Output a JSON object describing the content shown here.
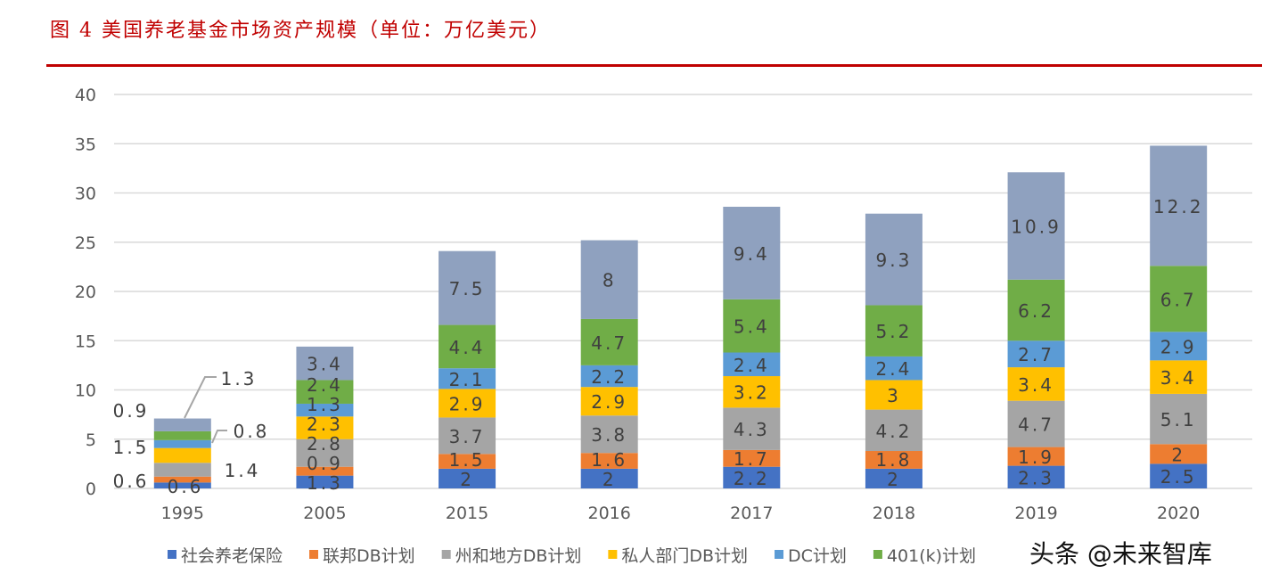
{
  "title": "图 4 美国养老基金市场资产规模（单位：万亿美元）",
  "watermark": "头条 @未来智库",
  "chart_data": {
    "type": "bar",
    "stacked": true,
    "title": "图 4 美国养老基金市场资产规模（单位：万亿美元）",
    "categories": [
      "1995",
      "2005",
      "2015",
      "2016",
      "2017",
      "2018",
      "2019",
      "2020"
    ],
    "ylim": [
      0,
      40
    ],
    "yticks": [
      0,
      5,
      10,
      15,
      20,
      25,
      30,
      35,
      40
    ],
    "grid": true,
    "legend_position": "bottom",
    "series": [
      {
        "name": "社会养老保险",
        "color": "#4472c4",
        "values": [
          0.6,
          1.3,
          2,
          2,
          2.2,
          2,
          2.3,
          2.5
        ]
      },
      {
        "name": "联邦DB计划",
        "color": "#ed7d31",
        "values": [
          0.6,
          0.9,
          1.5,
          1.6,
          1.7,
          1.8,
          1.9,
          2
        ]
      },
      {
        "name": "州和地方DB计划",
        "color": "#a5a5a5",
        "values": [
          1.4,
          2.8,
          3.7,
          3.8,
          4.3,
          4.2,
          4.7,
          5.1
        ]
      },
      {
        "name": "私人部门DB计划",
        "color": "#ffc000",
        "values": [
          1.5,
          2.3,
          2.9,
          2.9,
          3.2,
          3,
          3.4,
          3.4
        ]
      },
      {
        "name": "DC计划",
        "color": "#5b9bd5",
        "values": [
          0.8,
          1.3,
          2.1,
          2.2,
          2.4,
          2.4,
          2.7,
          2.9
        ]
      },
      {
        "name": "401(k)计划",
        "color": "#70ad47",
        "values": [
          0.9,
          2.4,
          4.4,
          4.7,
          5.4,
          5.2,
          6.2,
          6.7
        ]
      },
      {
        "color": "#8fa1bf",
        "values": [
          1.3,
          3.4,
          7.5,
          8,
          9.4,
          9.3,
          10.9,
          12.2
        ]
      }
    ]
  }
}
